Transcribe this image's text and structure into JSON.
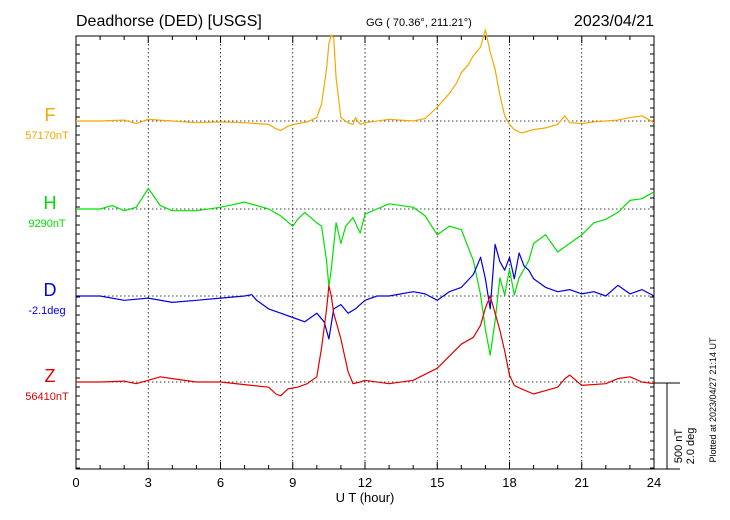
{
  "header": {
    "station": "Deadhorse (DED)  [USGS]",
    "coords": "GG ( 70.36°, 211.21°)",
    "date": "2023/04/21"
  },
  "footer": {
    "plotted": "Plotted at 2023/04/27 21:14 UT"
  },
  "scale_bar": {
    "line1": "500 nT",
    "line2": "2.0 deg"
  },
  "chart_data": {
    "type": "line",
    "xlabel": "U T (hour)",
    "xlim": [
      0,
      24
    ],
    "xticks": [
      0,
      3,
      6,
      9,
      12,
      15,
      18,
      21,
      24
    ],
    "grid": true,
    "colors": {
      "F": "#f5a800",
      "H": "#00e000",
      "D": "#0000e0",
      "Z": "#e00000"
    },
    "series": [
      {
        "name": "F",
        "baseline": "57170nT",
        "x": [
          0,
          1,
          2,
          2.5,
          2.7,
          3,
          4,
          5,
          6,
          7,
          7.5,
          8,
          8.3,
          8.5,
          8.8,
          9.2,
          9.6,
          10,
          10.2,
          10.4,
          10.5,
          10.6,
          10.7,
          10.8,
          11,
          11.3,
          11.5,
          11.6,
          11.8,
          12,
          13,
          14,
          14.5,
          15,
          15.5,
          15.8,
          16,
          16.3,
          16.5,
          16.8,
          17,
          17.2,
          17.4,
          17.6,
          17.8,
          18,
          18.2,
          18.5,
          19,
          19.5,
          20,
          20.3,
          20.5,
          21,
          21.5,
          22,
          22.5,
          23,
          23.5,
          24
        ],
        "y": [
          0,
          0,
          5,
          -15,
          -5,
          10,
          0,
          -10,
          -5,
          -10,
          -15,
          -20,
          -45,
          -55,
          -30,
          -15,
          -5,
          20,
          100,
          300,
          450,
          500,
          480,
          250,
          20,
          -10,
          -20,
          20,
          -20,
          -10,
          10,
          0,
          15,
          80,
          160,
          220,
          280,
          330,
          380,
          430,
          530,
          400,
          300,
          150,
          30,
          -20,
          -50,
          -70,
          -50,
          -40,
          -20,
          30,
          -10,
          -15,
          -5,
          0,
          5,
          20,
          30,
          -10
        ]
      },
      {
        "name": "H",
        "baseline": "9290nT",
        "x": [
          0,
          1,
          1.5,
          2,
          2.5,
          3,
          3.5,
          4,
          5,
          6,
          7,
          8,
          8.5,
          9,
          9.2,
          9.5,
          10,
          10.2,
          10.4,
          10.5,
          10.6,
          10.8,
          11,
          11.2,
          11.5,
          11.8,
          12,
          12.5,
          13,
          14,
          14.5,
          15,
          15.5,
          16,
          16.5,
          16.8,
          17,
          17.2,
          17.4,
          17.6,
          17.8,
          18,
          18.2,
          18.4,
          18.6,
          18.8,
          19,
          19.5,
          20,
          20.5,
          21,
          21.5,
          22,
          22.5,
          23,
          23.5,
          24
        ],
        "y": [
          0,
          0,
          20,
          -10,
          10,
          120,
          20,
          -10,
          -10,
          10,
          40,
          0,
          -40,
          -100,
          -60,
          -20,
          -80,
          -100,
          -300,
          -450,
          -350,
          -80,
          -200,
          -100,
          -50,
          -140,
          -30,
          0,
          30,
          10,
          -40,
          -150,
          -100,
          -120,
          -300,
          -500,
          -700,
          -850,
          -650,
          -400,
          -500,
          -350,
          -500,
          -400,
          -350,
          -300,
          -200,
          -150,
          -250,
          -200,
          -150,
          -80,
          -60,
          -20,
          50,
          60,
          100
        ]
      },
      {
        "name": "D",
        "baseline": "-2.1deg",
        "x": [
          0,
          1,
          2,
          3,
          4,
          5,
          6,
          7,
          7.3,
          7.5,
          8,
          8.5,
          9,
          9.5,
          10,
          10.3,
          10.5,
          10.7,
          11,
          11.3,
          11.6,
          12,
          12.5,
          13,
          14,
          14.5,
          15,
          15.5,
          16,
          16.5,
          16.8,
          17,
          17.2,
          17.4,
          17.6,
          17.8,
          18,
          18.2,
          18.4,
          18.6,
          18.8,
          19,
          19.5,
          20,
          20.5,
          21,
          21.5,
          22,
          22.5,
          23,
          23.5,
          24
        ],
        "y": [
          0,
          0,
          -0.1,
          -0.05,
          -0.15,
          -0.1,
          -0.05,
          0,
          0.03,
          -0.1,
          -0.3,
          -0.4,
          -0.5,
          -0.6,
          -0.4,
          -0.6,
          -1.0,
          -0.3,
          -0.2,
          -0.4,
          -0.3,
          -0.1,
          0,
          0,
          0.1,
          0.05,
          -0.1,
          0.1,
          0.2,
          0.5,
          0.9,
          0.4,
          -0.3,
          1.2,
          0.8,
          0.6,
          0.9,
          0.4,
          1.0,
          0.7,
          0.6,
          0.4,
          0.2,
          0.1,
          0.15,
          0.05,
          0.1,
          0,
          0.25,
          0.05,
          0.15,
          0
        ]
      },
      {
        "name": "Z",
        "baseline": "56410nT",
        "x": [
          0,
          1,
          2,
          2.5,
          3,
          3.5,
          4,
          5,
          6,
          7,
          8,
          8.3,
          8.5,
          8.8,
          9.2,
          9.6,
          10,
          10.2,
          10.4,
          10.5,
          10.6,
          10.7,
          10.8,
          11,
          11.3,
          11.5,
          11.8,
          12,
          13,
          14,
          15,
          15.5,
          16,
          16.5,
          16.8,
          17,
          17.2,
          17.4,
          17.6,
          17.8,
          18,
          18.2,
          18.5,
          19,
          19.5,
          20,
          20.3,
          20.5,
          21,
          22,
          22.5,
          23,
          23.5,
          24
        ],
        "y": [
          0,
          0,
          5,
          -10,
          10,
          30,
          20,
          0,
          0,
          -15,
          -30,
          -70,
          -80,
          -40,
          -30,
          -10,
          30,
          200,
          420,
          560,
          500,
          400,
          350,
          250,
          60,
          -10,
          0,
          10,
          -10,
          10,
          80,
          150,
          220,
          260,
          330,
          430,
          500,
          400,
          300,
          180,
          40,
          -20,
          -40,
          -70,
          -50,
          -30,
          20,
          40,
          -20,
          -10,
          20,
          30,
          0,
          -10
        ]
      }
    ]
  }
}
